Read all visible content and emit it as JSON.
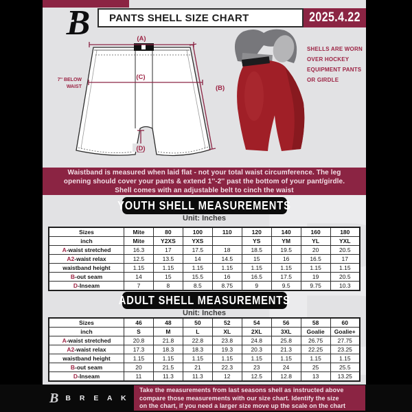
{
  "header": {
    "title": "PANTS SHELL SIZE CHART",
    "date": "2025.4.22",
    "logo_glyph": "B"
  },
  "diagram": {
    "label_a": "(A)",
    "label_b": "(B)",
    "label_c": "(C)",
    "label_d": "(D)",
    "below_waist_line1": "7'' BELOW",
    "below_waist_line2": "WAIST",
    "photo_note_lines": [
      "SHELLS ARE WORN",
      "OVER HOCKEY",
      "EQUIPMENT PANTS",
      "OR GIRDLE"
    ]
  },
  "notice_banner": {
    "lines": [
      "Waistband is measured when laid flat - not your total waist circumference. The leg",
      "opening should cover your pants & extend 1''-2'' past the bottom of your pant/girdle.",
      "Shell comes with an adjustable belt to cinch the waist"
    ]
  },
  "youth_section": {
    "heading": "YOUTH SHELL MEASUREMENTS",
    "unit": "Unit: Inches",
    "table": {
      "rows": [
        {
          "prefix": "",
          "label": "Sizes",
          "header": true,
          "values": [
            "Mite",
            "80",
            "100",
            "110",
            "120",
            "140",
            "160",
            "180"
          ]
        },
        {
          "prefix": "",
          "label": "inch",
          "header": true,
          "values": [
            "Mite",
            "Y2XS",
            "YXS",
            "",
            "YS",
            "YM",
            "YL",
            "YXL"
          ]
        },
        {
          "prefix": "A",
          "label": "-waist stretched",
          "header": false,
          "values": [
            "16.3",
            "17",
            "17.5",
            "18",
            "18.5",
            "19.5",
            "20",
            "20.5"
          ]
        },
        {
          "prefix": "A2",
          "label": "-waist relax",
          "header": false,
          "values": [
            "12.5",
            "13.5",
            "14",
            "14.5",
            "15",
            "16",
            "16.5",
            "17"
          ]
        },
        {
          "prefix": "",
          "label": "waistband height",
          "header": false,
          "values": [
            "1.15",
            "1.15",
            "1.15",
            "1.15",
            "1.15",
            "1.15",
            "1.15",
            "1.15"
          ]
        },
        {
          "prefix": "B",
          "label": "-out seam",
          "header": false,
          "values": [
            "14",
            "15",
            "15.5",
            "16",
            "16.5",
            "17.5",
            "19",
            "20.5"
          ]
        },
        {
          "prefix": "D",
          "label": "-Inseam",
          "header": false,
          "values": [
            "7",
            "8",
            "8.5",
            "8.75",
            "9",
            "9.5",
            "9.75",
            "10.3"
          ]
        }
      ]
    }
  },
  "adult_section": {
    "heading": "ADULT SHELL MEASUREMENTS",
    "unit": "Unit: Inches",
    "table": {
      "rows": [
        {
          "prefix": "",
          "label": "Sizes",
          "header": true,
          "values": [
            "46",
            "48",
            "50",
            "52",
            "54",
            "56",
            "58",
            "60"
          ]
        },
        {
          "prefix": "",
          "label": "inch",
          "header": true,
          "values": [
            "S",
            "M",
            "L",
            "XL",
            "2XL",
            "3XL",
            "Goalie",
            "Goalie+"
          ]
        },
        {
          "prefix": "A",
          "label": "-waist stretched",
          "header": false,
          "values": [
            "20.8",
            "21.8",
            "22.8",
            "23.8",
            "24.8",
            "25.8",
            "26.75",
            "27.75"
          ]
        },
        {
          "prefix": "A2",
          "label": "-waist relax",
          "header": false,
          "values": [
            "17.3",
            "18.3",
            "18.3",
            "19.3",
            "20.3",
            "21.3",
            "22.25",
            "23.25"
          ]
        },
        {
          "prefix": "",
          "label": "waistband height",
          "header": false,
          "values": [
            "1.15",
            "1.15",
            "1.15",
            "1.15",
            "1.15",
            "1.15",
            "1.15",
            "1.15"
          ]
        },
        {
          "prefix": "B",
          "label": "-out seam",
          "header": false,
          "values": [
            "20",
            "21.5",
            "21",
            "22.3",
            "23",
            "24",
            "25",
            "25.5"
          ]
        },
        {
          "prefix": "D",
          "label": "-Inseam",
          "header": false,
          "values": [
            "11",
            "11.3",
            "11.3",
            "12",
            "12.5",
            "12.8",
            "13",
            "13.25"
          ]
        }
      ]
    }
  },
  "footer": {
    "brand": "B R E A K A W A Y",
    "logo_glyph": "B",
    "note_lines": [
      "Take the measurements from last seasons shell as instructed above",
      "compare those measurements  with our size chart. Identify the size",
      "on the chart, if you need a larger size move up the scale on the chart"
    ]
  },
  "watermark_glyph": "B",
  "colors": {
    "accent_maroon": "#8B2443",
    "label_maroon": "#9C2343",
    "page_background": "#e2e2e4",
    "margin_black": "#000000",
    "shell_red": "#A01F27"
  }
}
